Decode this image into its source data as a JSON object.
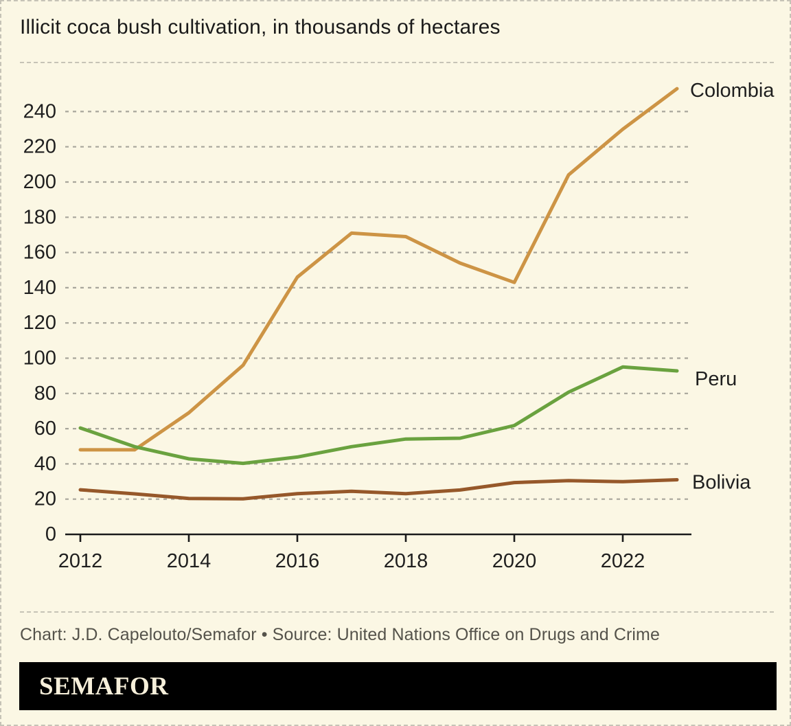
{
  "title": "Illicit coca bush cultivation, in thousands of hectares",
  "caption": "Chart: J.D. Capelouto/Semafor • Source: United Nations Office on Drugs and Crime",
  "brand": "SEMAFOR",
  "colors": {
    "background": "#fbf7e4",
    "border_dash": "#c6c3b6",
    "grid": "#a8a69b",
    "axis": "#1a1a1a",
    "tick_text": "#1f1f1f",
    "title_text": "#1a1a1a",
    "caption_text": "#55534b",
    "logo_bar": "#000000",
    "logo_text": "#f6efda"
  },
  "chart_data": {
    "type": "line",
    "title": "Illicit coca bush cultivation, in thousands of hectares",
    "units": "thousands of hectares",
    "x": [
      2012,
      2013,
      2014,
      2015,
      2016,
      2017,
      2018,
      2019,
      2020,
      2021,
      2022,
      2023
    ],
    "x_tick_labels": [
      "2012",
      "2014",
      "2016",
      "2018",
      "2020",
      "2022"
    ],
    "x_tick_years": [
      2012,
      2014,
      2016,
      2018,
      2020,
      2022
    ],
    "yticks": [
      0,
      20,
      40,
      60,
      80,
      100,
      120,
      140,
      160,
      180,
      200,
      220,
      240
    ],
    "ylim": [
      0,
      260
    ],
    "grid": "horizontal-dashed",
    "legend_position": "line-end-labels-right",
    "series": [
      {
        "name": "Colombia",
        "color": "#cd9445",
        "values": [
          48,
          48,
          69,
          96,
          146,
          171,
          169,
          154,
          143,
          204,
          230,
          253
        ]
      },
      {
        "name": "Peru",
        "color": "#6aa23f",
        "values": [
          60.4,
          49.8,
          42.9,
          40.3,
          43.9,
          49.8,
          54.1,
          54.6,
          61.8,
          80.7,
          95,
          92.8
        ]
      },
      {
        "name": "Bolivia",
        "color": "#96582a",
        "values": [
          25.3,
          23,
          20.4,
          20.2,
          23.1,
          24.5,
          23.1,
          25.2,
          29.4,
          30.5,
          29.9,
          31
        ]
      }
    ]
  }
}
